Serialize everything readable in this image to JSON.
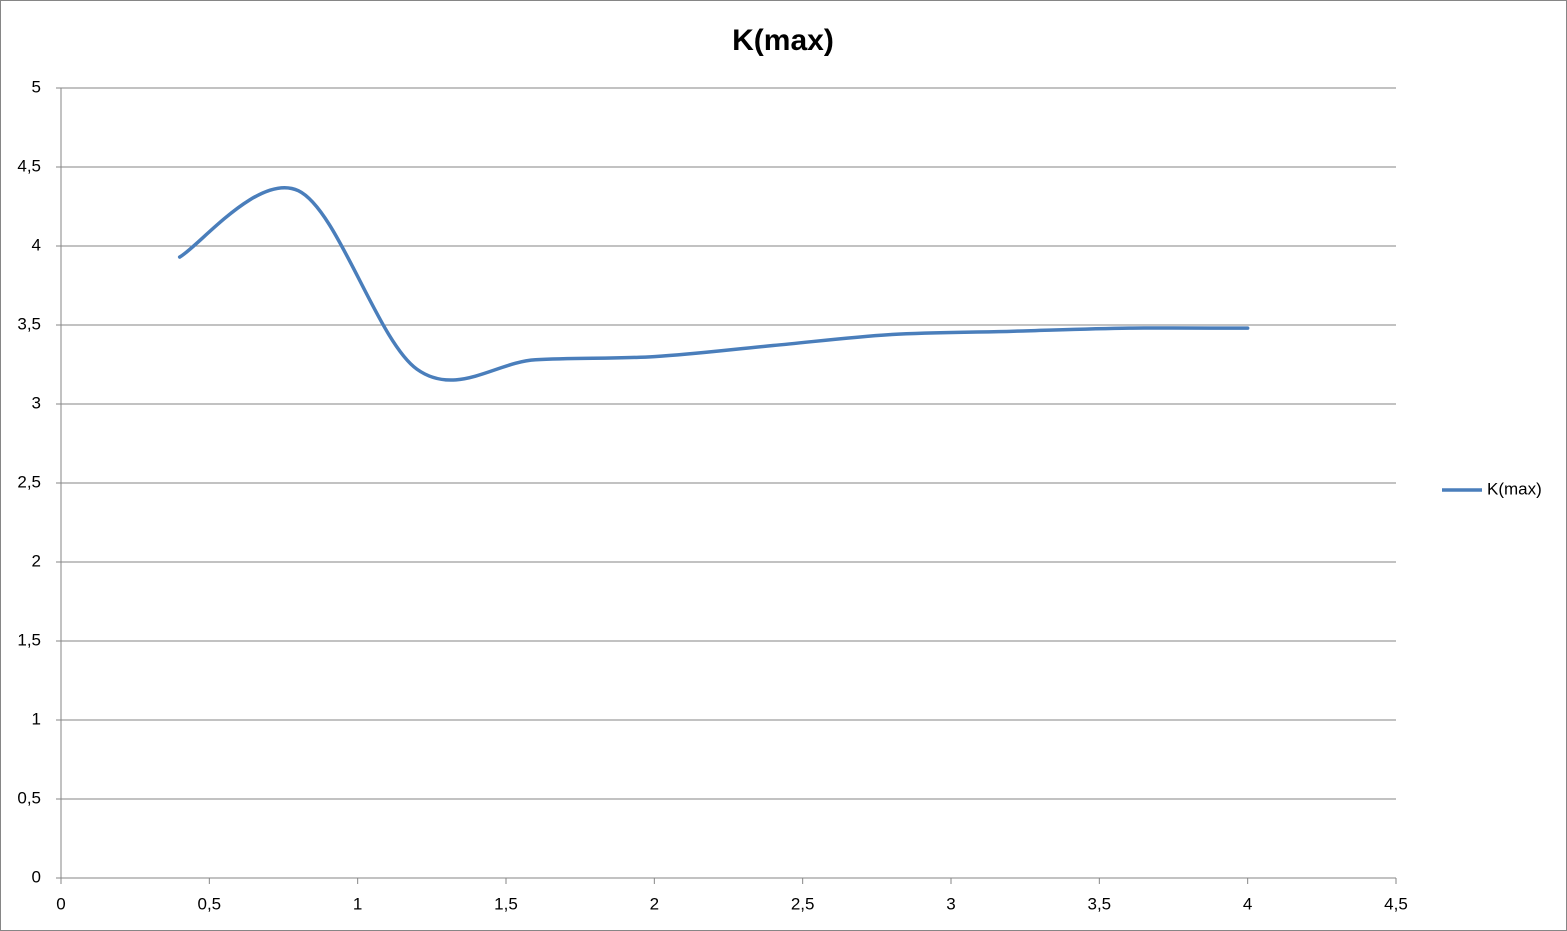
{
  "chart_data": {
    "type": "line",
    "title": "K(max)",
    "x": [
      0.4,
      0.8,
      1.2,
      1.6,
      2.0,
      2.4,
      2.8,
      3.2,
      3.6,
      4.0
    ],
    "series": [
      {
        "name": "K(max)",
        "color": "#4a7ebb",
        "values": [
          3.93,
          4.35,
          3.22,
          3.28,
          3.3,
          3.37,
          3.44,
          3.46,
          3.48,
          3.48
        ]
      }
    ],
    "xlim": [
      0,
      4.5
    ],
    "xticks": [
      0,
      {
        "value": 0.5,
        "label": "0,5"
      },
      1,
      {
        "value": 1.5,
        "label": "1,5"
      },
      2,
      {
        "value": 2.5,
        "label": "2,5"
      },
      3,
      {
        "value": 3.5,
        "label": "3,5"
      },
      4,
      {
        "value": 4.5,
        "label": "4,5"
      }
    ],
    "ylim": [
      0,
      5
    ],
    "yticks": [
      0,
      {
        "value": 0.5,
        "label": "0,5"
      },
      1,
      {
        "value": 1.5,
        "label": "1,5"
      },
      2,
      {
        "value": 2.5,
        "label": "2,5"
      },
      3,
      {
        "value": 3.5,
        "label": "3,5"
      },
      4,
      {
        "value": 4.5,
        "label": "4,5"
      },
      5
    ],
    "grid": true,
    "smooth": true,
    "legend": "right"
  }
}
